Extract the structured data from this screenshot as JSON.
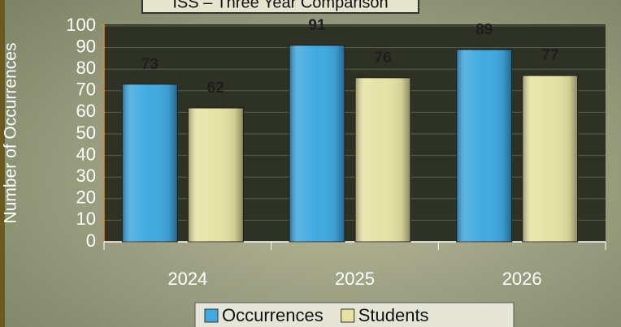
{
  "chart_data": {
    "type": "bar",
    "title": "ISS – Three Year Comparison",
    "y_label": "Number of Occurrences",
    "categories": [
      "2024",
      "2025",
      "2026"
    ],
    "series": [
      {
        "name": "Occurrences",
        "color": "#3fa9e0",
        "values": [
          73,
          91,
          89
        ]
      },
      {
        "name": "Students",
        "color": "#e6e2a4",
        "values": [
          62,
          76,
          77
        ]
      }
    ],
    "ylim": [
      0,
      100
    ],
    "yticks": [
      0,
      10,
      20,
      30,
      40,
      50,
      60,
      70,
      80,
      90,
      100
    ],
    "grid": true,
    "legend": "bottom"
  }
}
